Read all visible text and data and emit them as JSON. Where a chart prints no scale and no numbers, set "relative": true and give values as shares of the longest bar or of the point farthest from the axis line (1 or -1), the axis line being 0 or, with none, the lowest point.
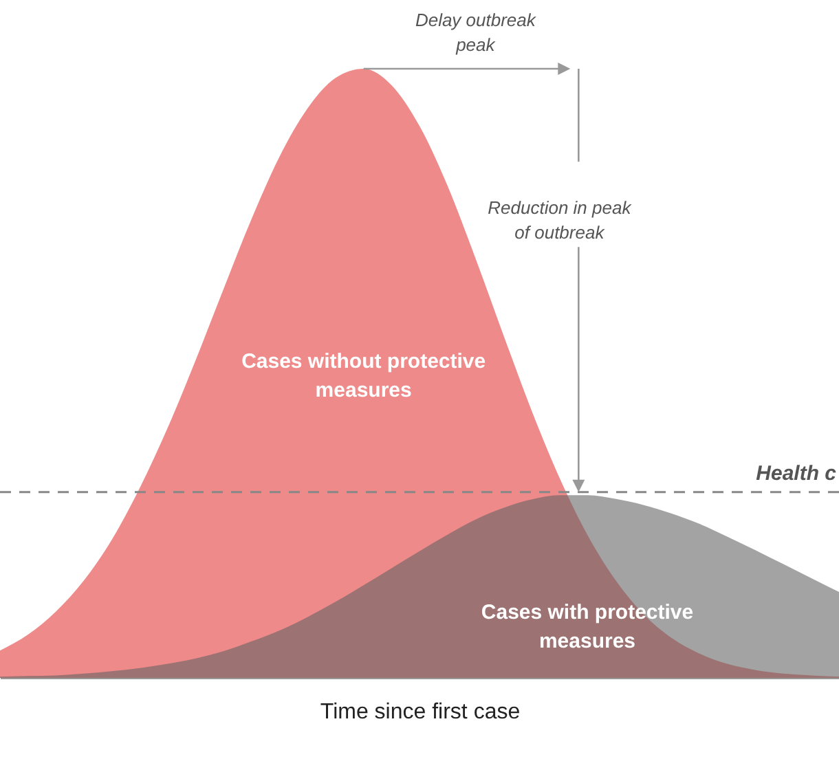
{
  "chart_data": {
    "type": "area",
    "relative": true,
    "xlabel": "Time since first case",
    "categories": [
      null,
      null,
      null,
      null,
      null,
      null,
      null,
      null,
      null,
      null,
      null,
      null,
      null,
      null,
      null,
      null,
      null,
      null,
      null,
      null,
      null,
      null,
      null,
      null,
      null,
      null,
      null,
      null,
      null,
      null,
      null
    ],
    "series": [
      {
        "name": "Cases without protective measures",
        "color": "#ee8a8a",
        "values": [
          0.045,
          0.071,
          0.109,
          0.16,
          0.227,
          0.312,
          0.411,
          0.522,
          0.639,
          0.754,
          0.856,
          0.935,
          0.985,
          1,
          0.973,
          0.906,
          0.808,
          0.689,
          0.563,
          0.44,
          0.329,
          0.235,
          0.161,
          0.105,
          0.066,
          0.04,
          0.023,
          0.013,
          0.007,
          0.004,
          0.002
        ]
      },
      {
        "name": "Cases with protective measures",
        "color": "#616161",
        "values": [
          0.002,
          0.003,
          0.004,
          0.007,
          0.011,
          0.016,
          0.023,
          0.032,
          0.044,
          0.06,
          0.078,
          0.1,
          0.125,
          0.152,
          0.18,
          0.208,
          0.235,
          0.26,
          0.279,
          0.293,
          0.3,
          0.3,
          0.294,
          0.284,
          0.27,
          0.253,
          0.232,
          0.21,
          0.187,
          0.164,
          0.141
        ]
      }
    ],
    "ref_lines": [
      {
        "axis": "y",
        "value": 0.305,
        "label": "Health c",
        "color": "#888888",
        "line_style": "dashed"
      }
    ],
    "annotations": [
      "Delay outbreak peak",
      "Reduction in peak of outbreak"
    ]
  }
}
